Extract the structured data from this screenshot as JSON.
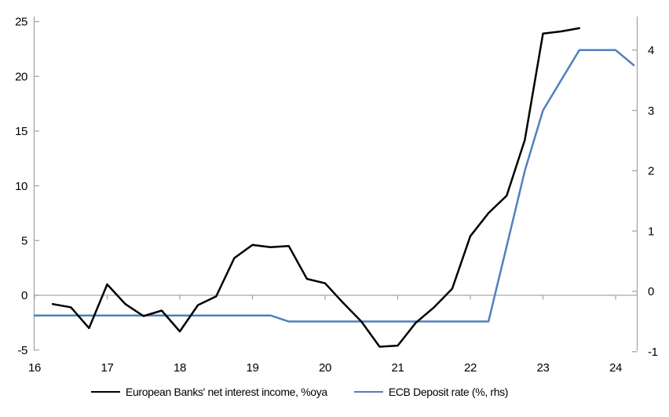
{
  "colors": {
    "axis": "#a6a6a6",
    "nii_line": "#000000",
    "ecb_line": "#4f81bd",
    "text": "#000000",
    "background": "#ffffff"
  },
  "chart_data": {
    "type": "line",
    "title": "",
    "grid": "zero-line-only",
    "legend_position": "bottom",
    "x_axis": {
      "tick_labels": [
        "16",
        "17",
        "18",
        "19",
        "20",
        "21",
        "22",
        "23",
        "24"
      ],
      "tick_values": [
        16,
        17,
        18,
        19,
        20,
        21,
        22,
        23,
        24
      ],
      "range": [
        16,
        24.3
      ]
    },
    "left_axis": {
      "ticks": [
        -5,
        0,
        5,
        10,
        15,
        20,
        25
      ],
      "tick_labels": [
        "-5",
        "0",
        "5",
        "10",
        "15",
        "20",
        "25"
      ],
      "range": [
        -5,
        25
      ]
    },
    "right_axis": {
      "ticks": [
        -1,
        0,
        1,
        2,
        3,
        4
      ],
      "tick_labels": [
        "-1",
        "0",
        "1",
        "2",
        "3",
        "4"
      ],
      "range": [
        -1,
        4.5
      ]
    },
    "series": [
      {
        "name": "European Banks' net interest income, %oya",
        "axis": "left",
        "color": "#000000",
        "x": [
          16.25,
          16.5,
          16.75,
          17.0,
          17.25,
          17.5,
          17.75,
          18.0,
          18.25,
          18.5,
          18.75,
          19.0,
          19.25,
          19.5,
          19.75,
          20.0,
          20.25,
          20.5,
          20.75,
          21.0,
          21.25,
          21.5,
          21.75,
          22.0,
          22.25,
          22.5,
          22.75,
          23.0,
          23.25,
          23.5
        ],
        "values": [
          -0.8,
          -1.1,
          -3.0,
          1.0,
          -0.8,
          -1.9,
          -1.4,
          -3.3,
          -0.9,
          -0.1,
          3.4,
          4.6,
          4.4,
          4.5,
          1.5,
          1.1,
          -0.7,
          -2.4,
          -4.7,
          -4.6,
          -2.5,
          -1.1,
          0.6,
          5.4,
          7.5,
          9.1,
          14.2,
          23.9,
          24.1,
          24.4
        ]
      },
      {
        "name": "ECB Deposit rate (%, rhs)",
        "axis": "right",
        "color": "#4f81bd",
        "x": [
          16.0,
          16.25,
          16.5,
          16.75,
          17.0,
          17.25,
          17.5,
          17.75,
          18.0,
          18.25,
          18.5,
          18.75,
          19.0,
          19.25,
          19.5,
          19.75,
          20.0,
          20.25,
          20.5,
          20.75,
          21.0,
          21.25,
          21.5,
          21.75,
          22.0,
          22.25,
          22.5,
          22.75,
          23.0,
          23.25,
          23.5,
          23.75,
          24.0,
          24.25
        ],
        "values": [
          -0.4,
          -0.4,
          -0.4,
          -0.4,
          -0.4,
          -0.4,
          -0.4,
          -0.4,
          -0.4,
          -0.4,
          -0.4,
          -0.4,
          -0.4,
          -0.4,
          -0.5,
          -0.5,
          -0.5,
          -0.5,
          -0.5,
          -0.5,
          -0.5,
          -0.5,
          -0.5,
          -0.5,
          -0.5,
          -0.5,
          0.75,
          2.0,
          3.0,
          3.5,
          4.0,
          4.0,
          4.0,
          3.75
        ]
      }
    ]
  }
}
